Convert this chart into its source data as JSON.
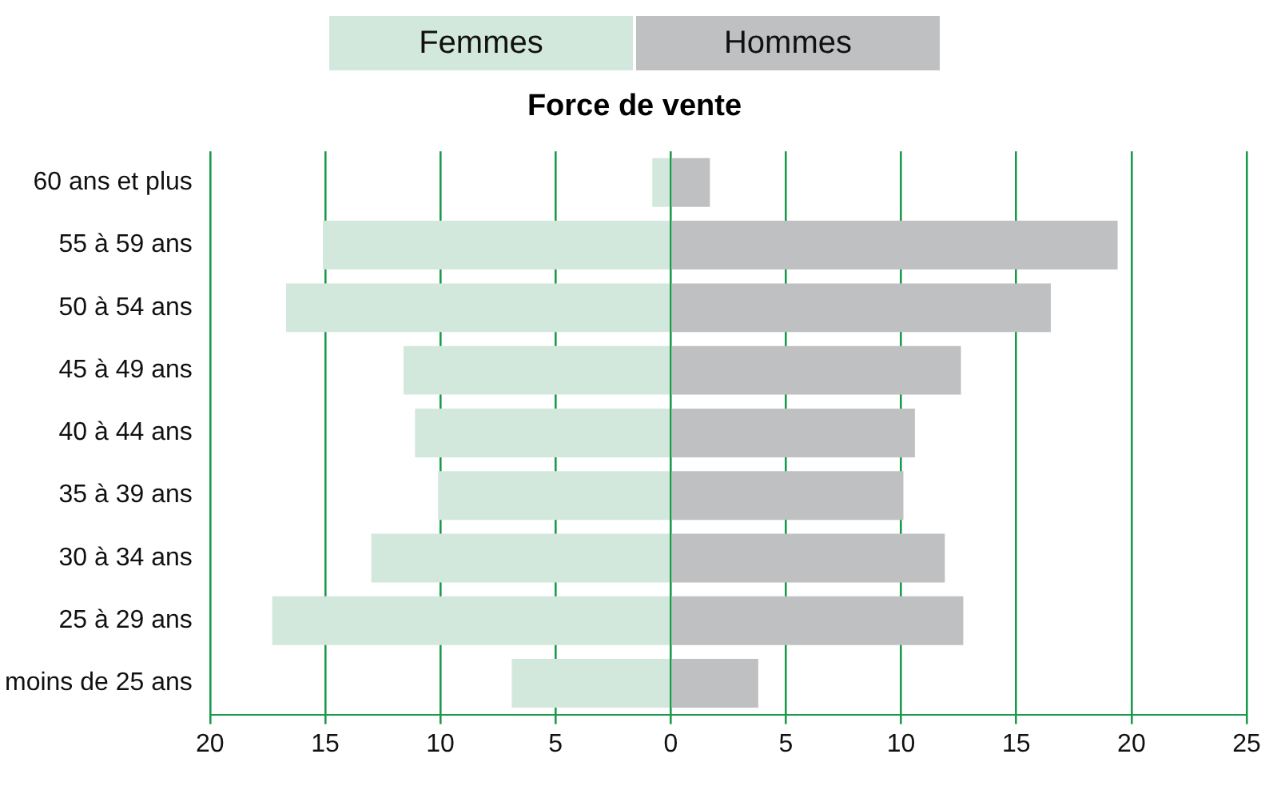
{
  "chart_data": {
    "type": "bar",
    "title": "Force de vente",
    "orientation": "horizontal",
    "stacked": true,
    "legend": "top",
    "grid": "x",
    "categories": [
      "60 ans et plus",
      "55 à 59 ans",
      "50 à 54 ans",
      "45 à 49 ans",
      "40 à 44 ans",
      "35 à 39 ans",
      "30 à 34 ans",
      "25 à 29 ans",
      "moins de 25 ans"
    ],
    "series": [
      {
        "name": "Femmes",
        "color": "#d3e8dc",
        "values": [
          -0.8,
          -15.1,
          -16.7,
          -11.6,
          -11.1,
          -10.1,
          -13.0,
          -17.3,
          -6.9
        ]
      },
      {
        "name": "Hommes",
        "color": "#bfc0c2",
        "values": [
          1.7,
          19.4,
          16.5,
          12.6,
          10.6,
          10.1,
          11.9,
          12.7,
          3.8
        ]
      }
    ],
    "xlim": [
      -20,
      25
    ],
    "xticks": [
      {
        "value": -20,
        "label": "20"
      },
      {
        "value": -15,
        "label": "15"
      },
      {
        "value": -10,
        "label": "10"
      },
      {
        "value": -5,
        "label": "5"
      },
      0,
      5,
      10,
      15,
      20,
      25
    ]
  }
}
